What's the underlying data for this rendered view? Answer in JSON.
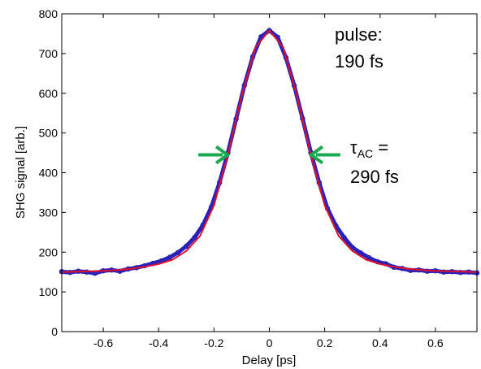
{
  "chart_data": {
    "type": "scatter",
    "title": "",
    "xlabel": "Delay  [ps]",
    "ylabel": "SHG signal  [arb.]",
    "xlim": [
      -0.75,
      0.75
    ],
    "ylim": [
      0,
      800
    ],
    "xticks": [
      -0.6,
      -0.4,
      -0.2,
      0,
      0.2,
      0.4,
      0.6
    ],
    "xtick_labels": [
      "-0.6",
      "-0.4",
      "-0.2",
      "0",
      "0.2",
      "0.4",
      "0.6"
    ],
    "yticks": [
      0,
      100,
      200,
      300,
      400,
      500,
      600,
      700,
      800
    ],
    "ytick_labels": [
      "0",
      "100",
      "200",
      "300",
      "400",
      "500",
      "600",
      "700",
      "800"
    ],
    "grid": false,
    "series": [
      {
        "kind": "measured-points",
        "color": "#2a22b8",
        "x": [
          -0.75,
          -0.72,
          -0.69,
          -0.66,
          -0.63,
          -0.6,
          -0.57,
          -0.54,
          -0.51,
          -0.48,
          -0.45,
          -0.42,
          -0.39,
          -0.36,
          -0.33,
          -0.3,
          -0.27,
          -0.24,
          -0.21,
          -0.18,
          -0.15,
          -0.12,
          -0.09,
          -0.06,
          -0.03,
          0.0,
          0.03,
          0.06,
          0.09,
          0.12,
          0.15,
          0.18,
          0.21,
          0.24,
          0.27,
          0.3,
          0.33,
          0.36,
          0.39,
          0.42,
          0.45,
          0.48,
          0.51,
          0.54,
          0.57,
          0.6,
          0.63,
          0.66,
          0.69,
          0.72,
          0.75
        ],
        "y": [
          151,
          149,
          152,
          150,
          147,
          153,
          155,
          152,
          158,
          161,
          166,
          172,
          178,
          187,
          199,
          215,
          237,
          268,
          313,
          375,
          450,
          535,
          620,
          692,
          742,
          758,
          741,
          690,
          619,
          536,
          451,
          375,
          310,
          267,
          237,
          212,
          198,
          186,
          176,
          171,
          162,
          159,
          154,
          155,
          152,
          153,
          150,
          151,
          149,
          150,
          148
        ]
      },
      {
        "kind": "fit-curve",
        "color": "#e0112b",
        "x": [
          -0.75,
          -0.7,
          -0.65,
          -0.6,
          -0.55,
          -0.5,
          -0.45,
          -0.4,
          -0.35,
          -0.3,
          -0.25,
          -0.2,
          -0.15,
          -0.1,
          -0.05,
          0.0,
          0.05,
          0.1,
          0.15,
          0.2,
          0.25,
          0.3,
          0.35,
          0.4,
          0.45,
          0.5,
          0.55,
          0.6,
          0.65,
          0.7,
          0.75
        ],
        "y": [
          150,
          151,
          152,
          153,
          155,
          158,
          163,
          170,
          181,
          203,
          241,
          318,
          445,
          593,
          716,
          758,
          716,
          593,
          445,
          318,
          241,
          203,
          181,
          170,
          163,
          158,
          155,
          153,
          152,
          151,
          150
        ]
      }
    ],
    "annotations": {
      "pulse_label": "pulse:",
      "pulse_value": "190 fs",
      "tau_symbol": "τ",
      "tau_subscript": "AC",
      "tau_equals": " =",
      "tau_value": "290 fs",
      "arrow_color": "#1aa850",
      "fwhm_level": 445,
      "fwhm_x": [
        -0.145,
        0.145
      ]
    }
  }
}
